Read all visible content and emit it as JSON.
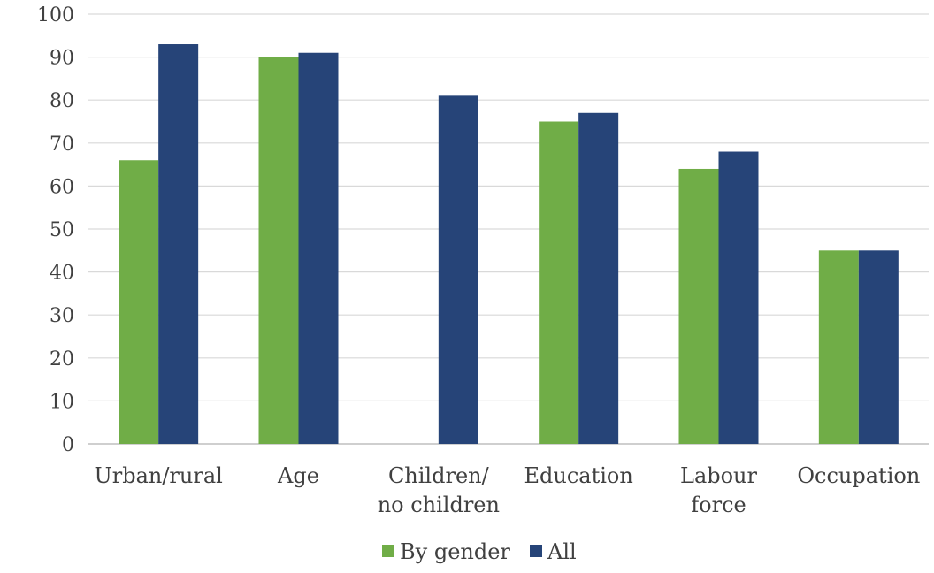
{
  "chart_data": {
    "type": "bar",
    "categories": [
      [
        "Urban/rural"
      ],
      [
        "Age"
      ],
      [
        "Children/",
        "no children"
      ],
      [
        "Education"
      ],
      [
        "Labour",
        "force"
      ],
      [
        "Occupation"
      ]
    ],
    "series": [
      {
        "name": "By gender",
        "color": "#70ad47",
        "values": [
          66,
          90,
          null,
          75,
          64,
          45
        ]
      },
      {
        "name": "All",
        "color": "#264478",
        "values": [
          93,
          91,
          81,
          77,
          68,
          45
        ]
      }
    ],
    "ylim": [
      0,
      100
    ],
    "yticks": [
      0,
      10,
      20,
      30,
      40,
      50,
      60,
      70,
      80,
      90,
      100
    ],
    "grid": true,
    "legend_position": "bottom"
  }
}
